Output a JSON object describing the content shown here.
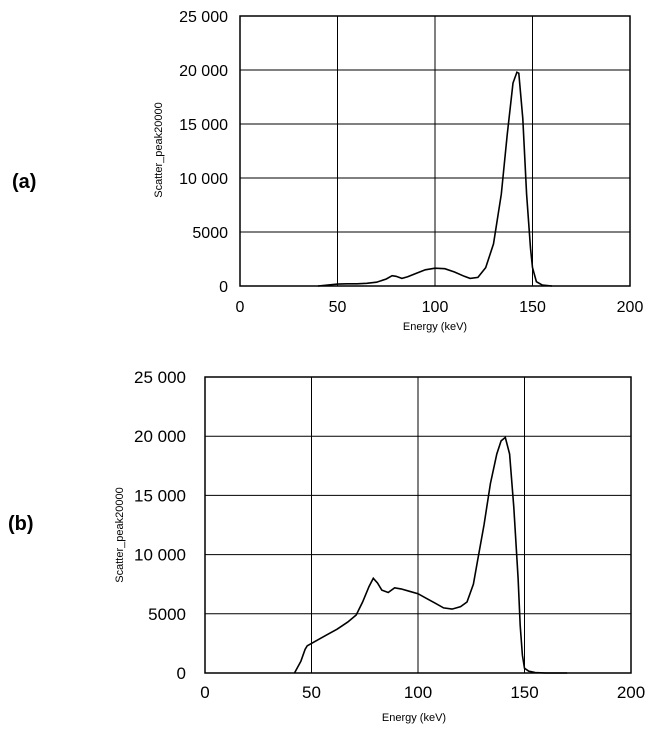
{
  "figure": {
    "background": "#ffffff",
    "line_color": "#000000",
    "grid_color": "#000000"
  },
  "chart_data": [
    {
      "panel_label": "(a)",
      "type": "line",
      "xlabel": "Energy (keV)",
      "ylabel": "Scatter_peak20000",
      "xlim": [
        0,
        200
      ],
      "ylim": [
        0,
        25000
      ],
      "xticks": [
        0,
        50,
        100,
        150,
        200
      ],
      "xtick_labels": [
        "0",
        "50",
        "100",
        "150",
        "200"
      ],
      "yticks": [
        0,
        5000,
        10000,
        15000,
        20000,
        25000
      ],
      "ytick_labels": [
        "0",
        "5000",
        "10 000",
        "15 000",
        "20 000",
        "25 000"
      ],
      "grid": true,
      "series": [
        {
          "x": [
            40,
            45,
            50,
            55,
            60,
            65,
            70,
            75,
            78,
            80,
            83,
            86,
            90,
            95,
            100,
            105,
            110,
            115,
            118,
            122,
            126,
            130,
            134,
            137,
            140,
            142,
            143,
            145,
            147,
            149,
            150,
            152,
            155,
            160
          ],
          "y": [
            0,
            80,
            180,
            200,
            200,
            250,
            350,
            650,
            950,
            900,
            700,
            850,
            1150,
            1500,
            1650,
            1600,
            1300,
            900,
            700,
            800,
            1700,
            3900,
            8500,
            14000,
            18800,
            19800,
            19700,
            15500,
            8500,
            3500,
            1700,
            400,
            80,
            0
          ]
        }
      ]
    },
    {
      "panel_label": "(b)",
      "type": "line",
      "xlabel": "Energy (keV)",
      "ylabel": "Scatter_peak20000",
      "xlim": [
        0,
        200
      ],
      "ylim": [
        0,
        25000
      ],
      "xticks": [
        0,
        50,
        100,
        150,
        200
      ],
      "xtick_labels": [
        "0",
        "50",
        "100",
        "150",
        "200"
      ],
      "yticks": [
        0,
        5000,
        10000,
        15000,
        20000,
        25000
      ],
      "ytick_labels": [
        "0",
        "5000",
        "10 000",
        "15 000",
        "20 000",
        "25 000"
      ],
      "grid": true,
      "series": [
        {
          "x": [
            42,
            45,
            47,
            48,
            50,
            53,
            57,
            62,
            67,
            71,
            74,
            77,
            79,
            81,
            83,
            86,
            89,
            92,
            96,
            100,
            104,
            108,
            112,
            116,
            120,
            123,
            126,
            128,
            131,
            134,
            137,
            139,
            141,
            143,
            145,
            147,
            148,
            149,
            150,
            152,
            155,
            160,
            170
          ],
          "y": [
            0,
            1000,
            2000,
            2300,
            2500,
            2800,
            3200,
            3700,
            4300,
            4900,
            6000,
            7300,
            8000,
            7600,
            7000,
            6800,
            7200,
            7100,
            6900,
            6700,
            6300,
            5900,
            5500,
            5400,
            5600,
            6000,
            7500,
            9500,
            12500,
            16000,
            18500,
            19600,
            19900,
            18500,
            14000,
            8000,
            4000,
            1500,
            400,
            150,
            40,
            0,
            0
          ]
        }
      ]
    }
  ]
}
